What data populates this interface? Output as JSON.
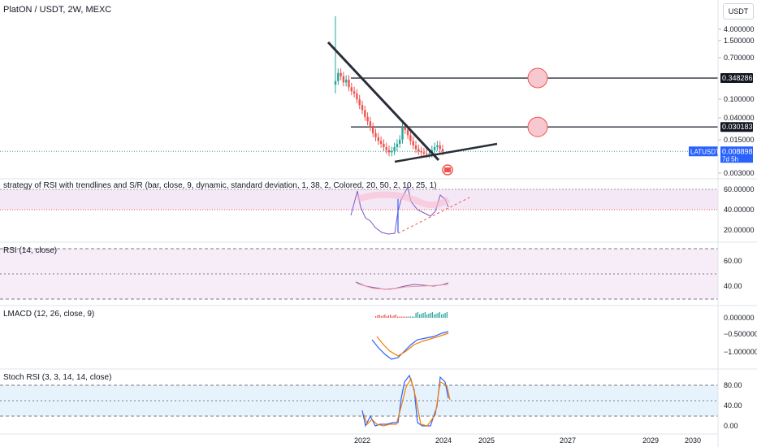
{
  "header": {
    "title": "PlatON / USDT, 2W, MEXC",
    "currency_button": "USDT"
  },
  "colors": {
    "up": "#26a69a",
    "down": "#ef5350",
    "trend": "#2a2e39",
    "rsi_band": "#f3e5f5",
    "stoch_band": "#e3f2fd",
    "blue": "#2962ff",
    "orange": "#f57c00",
    "price_label": "#2962ff"
  },
  "chart_data": [
    {
      "type": "line",
      "title": "PlatON / USDT, 2W, MEXC",
      "scale": "log",
      "y_ticks": [
        "4.000000",
        "1.500000",
        "0.700000",
        "0.100000",
        "0.040000",
        "0.015000",
        "0.003000"
      ],
      "x_ticks": [
        "2022",
        "2024",
        "2025",
        "2027",
        "2029",
        "2030"
      ],
      "price_labels": [
        {
          "text": "0.348286",
          "value": 0.348286
        },
        {
          "text": "0.030183",
          "value": 0.030183
        }
      ],
      "current": {
        "symbol": "LATUSDT",
        "value": "0.008898",
        "countdown": "7d 5h"
      },
      "horizontal_levels": [
        0.348286,
        0.030183
      ],
      "candles_close": [
        0.3,
        0.45,
        0.38,
        0.28,
        0.32,
        0.22,
        0.18,
        0.16,
        0.12,
        0.09,
        0.07,
        0.05,
        0.04,
        0.03,
        0.022,
        0.018,
        0.015,
        0.013,
        0.011,
        0.0095,
        0.0085,
        0.009,
        0.011,
        0.013,
        0.016,
        0.03,
        0.026,
        0.02,
        0.015,
        0.012,
        0.01,
        0.009,
        0.0085,
        0.008,
        0.0078,
        0.008,
        0.0095,
        0.011,
        0.012,
        0.01,
        0.0089
      ]
    },
    {
      "type": "line",
      "title": "strategy of RSI with trendlines and S/R (bar, close, 9, dynamic, standard deviation, 1, 38, 2, Colored, 20,   50, 2, 10,   25, 1)",
      "y_ticks": [
        "60.00000",
        "40.00000",
        "20.00000"
      ]
    },
    {
      "type": "line",
      "title": "RSI (14, close)",
      "y_ticks": [
        "60.00",
        "40.00"
      ]
    },
    {
      "type": "bar",
      "title": "LMACD (12, 26, close, 9)",
      "y_ticks": [
        "0.000000",
        "−0.500000",
        "−1.000000"
      ]
    },
    {
      "type": "line",
      "title": "Stoch RSI (3, 3, 14, 14, close)",
      "y_ticks": [
        "80.00",
        "40.00",
        "0.00"
      ]
    }
  ]
}
